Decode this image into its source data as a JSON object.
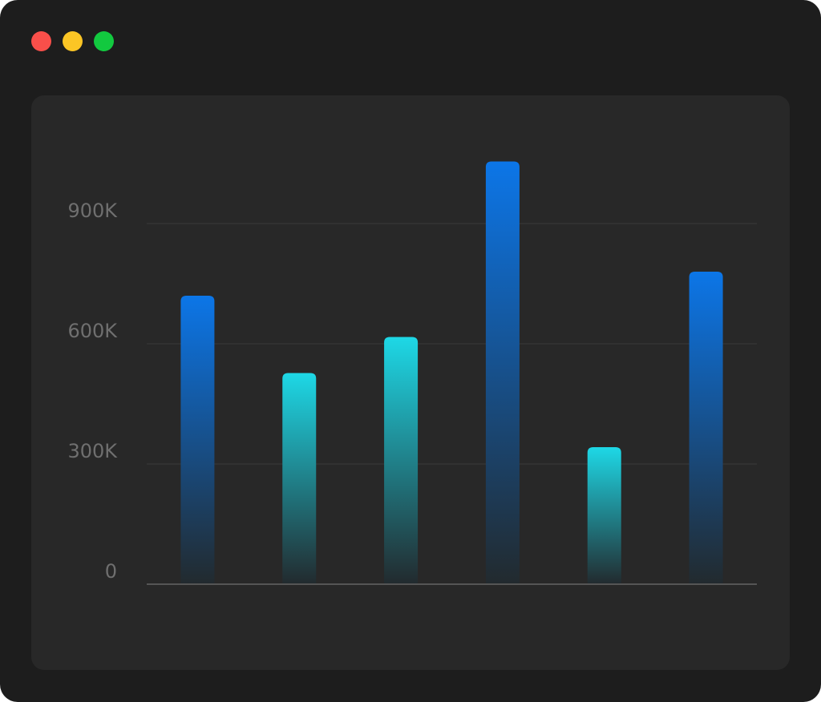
{
  "window": {
    "controls": [
      {
        "name": "close-button",
        "color": "#f94f4a"
      },
      {
        "name": "minimize-button",
        "color": "#fbc525"
      },
      {
        "name": "zoom-button",
        "color": "#12c93f"
      }
    ]
  },
  "chart_data": {
    "type": "bar",
    "title": "",
    "xlabel": "",
    "ylabel": "",
    "ylim": [
      0,
      1200000
    ],
    "y_ticks": [
      0,
      300000,
      600000,
      900000
    ],
    "y_tick_labels": [
      "0",
      "300K",
      "600K",
      "900K"
    ],
    "grid": true,
    "categories": [
      "",
      "",
      "",
      "",
      "",
      ""
    ],
    "values": [
      720000,
      527000,
      617000,
      1055000,
      342000,
      780000
    ],
    "bar_styles": [
      "blue",
      "cyan",
      "cyan",
      "blue",
      "cyan",
      "blue"
    ],
    "colors": {
      "blue_top": "#0c76e8",
      "cyan_top": "#1ed8e6",
      "bar_bottom": "#222a2e",
      "grid": "#3a3a3a",
      "axis": "#555555",
      "tick_text": "#6f6f6f"
    }
  }
}
